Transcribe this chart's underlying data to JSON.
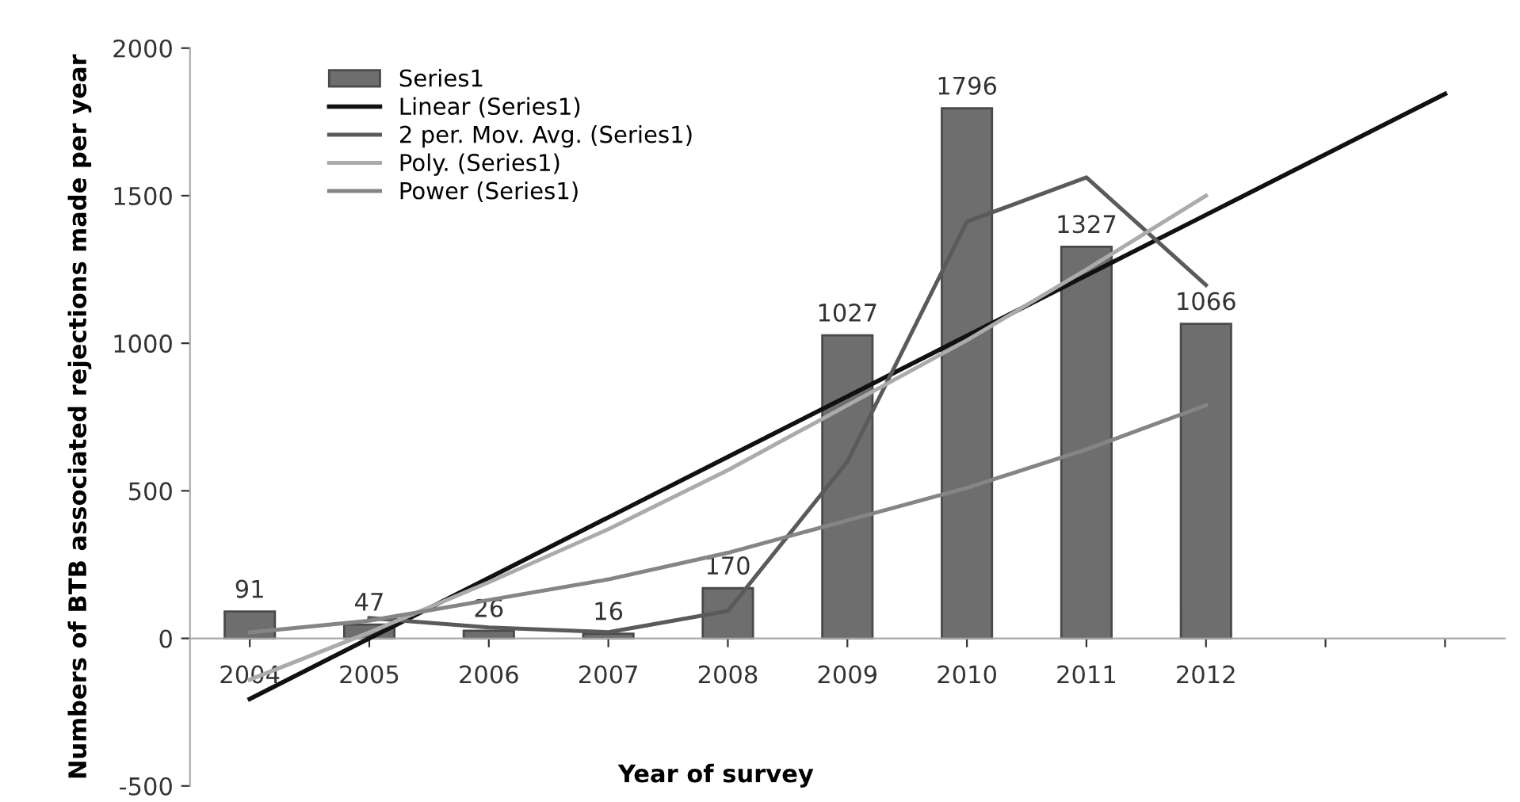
{
  "chart_data": {
    "type": "bar",
    "xlabel": "Year of survey",
    "ylabel": "Numbers of BTB associated rejections made per year",
    "categories": [
      "2004",
      "2005",
      "2006",
      "2007",
      "2008",
      "2009",
      "2010",
      "2011",
      "2012",
      null,
      null
    ],
    "series": [
      {
        "name": "Series1",
        "color": "#6e6e6e",
        "values": [
          91,
          47,
          26,
          16,
          170,
          1027,
          1796,
          1327,
          1066,
          null,
          null
        ],
        "value_labels": [
          "91",
          "47",
          "26",
          "16",
          "170",
          "1027",
          "1796",
          "1327",
          "1066",
          null,
          null
        ]
      },
      {
        "name": "Linear (Series1)",
        "type": "line",
        "color": "#111111",
        "values": [
          -205,
          0,
          205,
          410,
          615,
          820,
          1025,
          1230,
          1435,
          1640,
          1845
        ]
      },
      {
        "name": "2 per. Mov. Avg. (Series1)",
        "type": "line",
        "color": "#5a5a5a",
        "values": [
          null,
          69,
          37,
          21,
          93,
          599,
          1412,
          1562,
          1197,
          null,
          null
        ]
      },
      {
        "name": "Poly. (Series1)",
        "type": "line",
        "color": "#ababab",
        "values": [
          -140,
          20,
          190,
          370,
          570,
          790,
          1010,
          1250,
          1500,
          null,
          null
        ]
      },
      {
        "name": "Power (Series1)",
        "type": "line",
        "color": "#858585",
        "values": [
          20,
          60,
          130,
          200,
          290,
          400,
          510,
          640,
          790,
          null,
          null
        ]
      }
    ],
    "ylim": [
      -500,
      2000
    ],
    "yticks": [
      -500,
      0,
      500,
      1000,
      1500,
      2000
    ],
    "grid": false,
    "legend": "top left"
  }
}
